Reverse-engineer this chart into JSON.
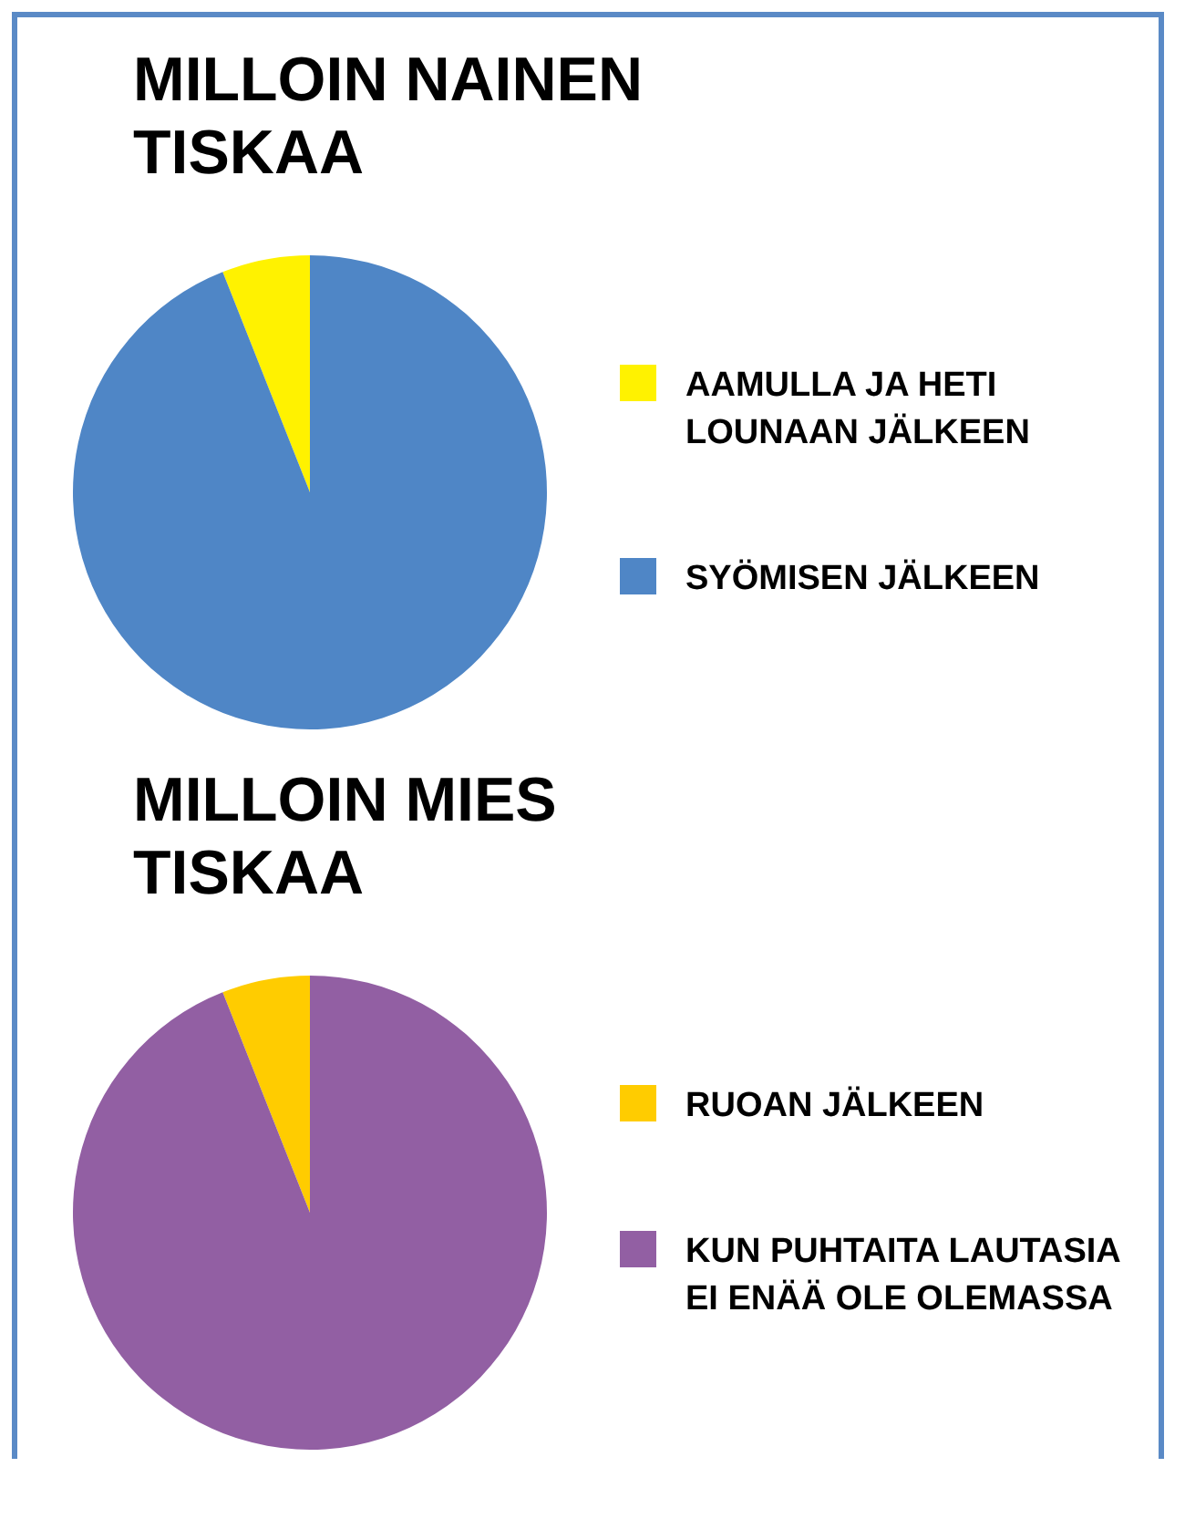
{
  "chart_data": [
    {
      "type": "pie",
      "title": "MILLOIN NAINEN TISKAA",
      "categories": [
        "AAMULLA JA HETI LOUNAAN JÄLKEEN",
        "SYÖMISEN JÄLKEEN"
      ],
      "values": [
        6,
        94
      ],
      "colors": [
        "#fff200",
        "#4f86c6"
      ],
      "legend": "right"
    },
    {
      "type": "pie",
      "title": "MILLOIN MIES TISKAA",
      "categories": [
        "RUOAN JÄLKEEN",
        "KUN PUHTAITA LAUTASIA EI ENÄÄ OLE OLEMASSA"
      ],
      "values": [
        6,
        94
      ],
      "colors": [
        "#ffcc00",
        "#925fa3"
      ],
      "legend": "right"
    }
  ]
}
